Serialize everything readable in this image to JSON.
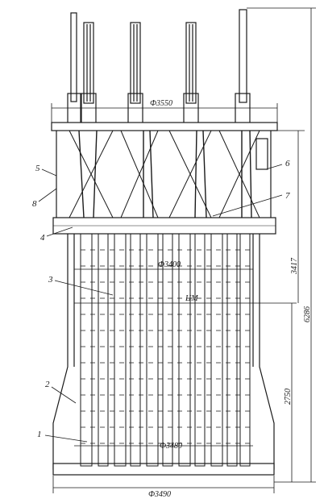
{
  "figure": {
    "part_numbers": [
      "1",
      "2",
      "3",
      "4",
      "5",
      "6",
      "7",
      "8"
    ],
    "dimensions": {
      "top_diameter": "Ф3550",
      "mid_diameter": "Ф3400",
      "lower_diameter": "Ф3480",
      "bottom_diameter": "Ф3490",
      "height_upper": "3417",
      "height_total": "6286",
      "height_lower": "2750",
      "center_mark": "ЦМ"
    },
    "colors": {
      "ink": "#1a1a1a",
      "paper": "#ffffff",
      "hatch": "#444444"
    }
  }
}
